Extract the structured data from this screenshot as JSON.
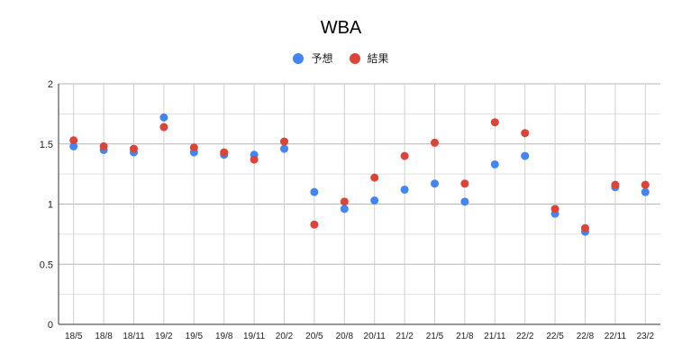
{
  "chart_data": {
    "type": "scatter",
    "title": "WBA",
    "xlabel": "",
    "ylabel": "",
    "categories": [
      "18/5",
      "18/8",
      "18/11",
      "19/2",
      "19/5",
      "19/8",
      "19/11",
      "20/2",
      "20/5",
      "20/8",
      "20/11",
      "21/2",
      "21/5",
      "21/8",
      "21/11",
      "22/2",
      "22/5",
      "22/8",
      "22/11",
      "23/2"
    ],
    "ylim": [
      0,
      2
    ],
    "yticks": [
      "0",
      "0.5",
      "1",
      "1.5",
      "2"
    ],
    "grid": true,
    "legend_position": "top",
    "series": [
      {
        "name": "予想",
        "color": "#4285f4",
        "values": [
          1.48,
          1.45,
          1.43,
          1.72,
          1.43,
          1.41,
          1.41,
          1.46,
          1.1,
          0.96,
          1.03,
          1.12,
          1.17,
          1.02,
          1.33,
          1.4,
          0.92,
          0.77,
          1.14,
          1.1
        ]
      },
      {
        "name": "結果",
        "color": "#db4437",
        "values": [
          1.53,
          1.48,
          1.46,
          1.64,
          1.47,
          1.43,
          1.37,
          1.52,
          0.83,
          1.02,
          1.22,
          1.4,
          1.51,
          1.17,
          1.68,
          1.59,
          0.96,
          0.8,
          1.16,
          1.16
        ]
      }
    ]
  }
}
